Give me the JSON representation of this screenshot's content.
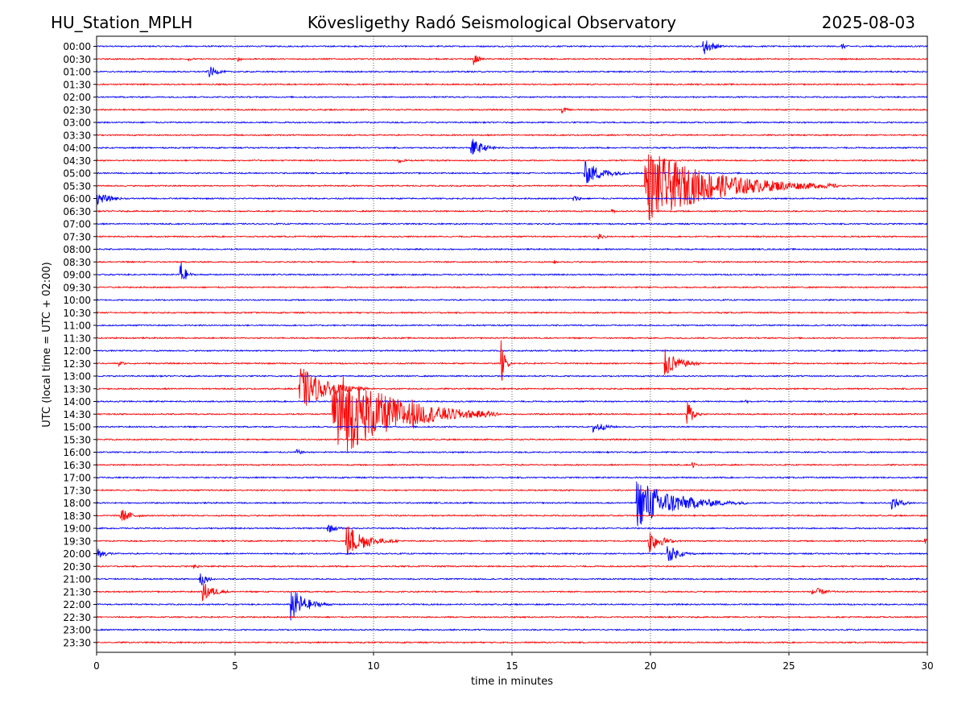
{
  "chart_data": {
    "type": "line",
    "title_left": "HU_Station_MPLH",
    "title": "Kövesligethy Radó Seismological Observatory",
    "title_right": "2025-08-03",
    "xlabel": "time in minutes",
    "ylabel": "UTC (local time = UTC + 02:00)",
    "xlim": [
      0,
      30
    ],
    "xticks": [
      0,
      5,
      10,
      15,
      20,
      25,
      30
    ],
    "grid": "vertical dotted lines at x ticks",
    "row_labels": [
      "00:00",
      "00:30",
      "01:00",
      "01:30",
      "02:00",
      "02:30",
      "03:00",
      "03:30",
      "04:00",
      "04:30",
      "05:00",
      "05:30",
      "06:00",
      "06:30",
      "07:00",
      "07:30",
      "08:00",
      "08:30",
      "09:00",
      "09:30",
      "10:00",
      "10:30",
      "11:00",
      "11:30",
      "12:00",
      "12:30",
      "13:00",
      "13:30",
      "14:00",
      "14:30",
      "15:00",
      "15:30",
      "16:00",
      "16:30",
      "17:00",
      "17:30",
      "18:00",
      "18:30",
      "19:00",
      "19:30",
      "20:00",
      "20:30",
      "21:00",
      "21:30",
      "22:00",
      "22:30",
      "23:00",
      "23:30"
    ],
    "colors": [
      "#0000ff",
      "#ff0000"
    ],
    "noise_level": 0.05,
    "events": [
      {
        "row": 0,
        "x": 21.9,
        "amp": 0.8,
        "dur": 1.0
      },
      {
        "row": 0,
        "x": 26.9,
        "amp": 0.3,
        "dur": 0.5
      },
      {
        "row": 1,
        "x": 3.3,
        "amp": 0.15,
        "dur": 0.8
      },
      {
        "row": 1,
        "x": 5.1,
        "amp": 0.2,
        "dur": 0.6
      },
      {
        "row": 1,
        "x": 13.6,
        "amp": 0.5,
        "dur": 0.6
      },
      {
        "row": 2,
        "x": 4.0,
        "amp": 0.6,
        "dur": 0.9
      },
      {
        "row": 5,
        "x": 16.8,
        "amp": 0.3,
        "dur": 0.6
      },
      {
        "row": 8,
        "x": 13.5,
        "amp": 0.9,
        "dur": 1.2
      },
      {
        "row": 9,
        "x": 10.9,
        "amp": 0.35,
        "dur": 0.5
      },
      {
        "row": 10,
        "x": 17.6,
        "amp": 1.0,
        "dur": 2.0
      },
      {
        "row": 11,
        "x": 19.8,
        "amp": 3.0,
        "dur": 7.0
      },
      {
        "row": 12,
        "x": 0.0,
        "amp": 0.5,
        "dur": 1.5
      },
      {
        "row": 12,
        "x": 17.2,
        "amp": 0.3,
        "dur": 0.8
      },
      {
        "row": 13,
        "x": 18.6,
        "amp": 0.2,
        "dur": 0.5
      },
      {
        "row": 15,
        "x": 18.1,
        "amp": 0.4,
        "dur": 0.6
      },
      {
        "row": 17,
        "x": 16.5,
        "amp": 0.2,
        "dur": 0.4
      },
      {
        "row": 18,
        "x": 3.0,
        "amp": 1.5,
        "dur": 0.5
      },
      {
        "row": 25,
        "x": 14.6,
        "amp": 2.0,
        "dur": 0.4
      },
      {
        "row": 25,
        "x": 20.5,
        "amp": 1.2,
        "dur": 1.5
      },
      {
        "row": 25,
        "x": 0.8,
        "amp": 0.3,
        "dur": 0.5
      },
      {
        "row": 27,
        "x": 7.3,
        "amp": 2.0,
        "dur": 2.5
      },
      {
        "row": 28,
        "x": 23.4,
        "amp": 0.25,
        "dur": 0.5
      },
      {
        "row": 29,
        "x": 8.5,
        "amp": 4.0,
        "dur": 6.0
      },
      {
        "row": 29,
        "x": 11.3,
        "amp": 1.5,
        "dur": 1.5
      },
      {
        "row": 29,
        "x": 21.3,
        "amp": 1.5,
        "dur": 0.6
      },
      {
        "row": 30,
        "x": 17.9,
        "amp": 0.6,
        "dur": 1.2
      },
      {
        "row": 32,
        "x": 7.2,
        "amp": 0.3,
        "dur": 0.6
      },
      {
        "row": 33,
        "x": 21.5,
        "amp": 0.3,
        "dur": 0.4
      },
      {
        "row": 36,
        "x": 19.5,
        "amp": 2.0,
        "dur": 4.0
      },
      {
        "row": 36,
        "x": 28.7,
        "amp": 0.5,
        "dur": 1.3
      },
      {
        "row": 37,
        "x": 0.8,
        "amp": 0.7,
        "dur": 1.2
      },
      {
        "row": 38,
        "x": 8.3,
        "amp": 0.5,
        "dur": 0.9
      },
      {
        "row": 39,
        "x": 9.0,
        "amp": 1.5,
        "dur": 2.0
      },
      {
        "row": 39,
        "x": 19.9,
        "amp": 1.2,
        "dur": 1.2
      },
      {
        "row": 39,
        "x": 29.9,
        "amp": 0.5,
        "dur": 0.2
      },
      {
        "row": 40,
        "x": 0.0,
        "amp": 0.5,
        "dur": 1.0
      },
      {
        "row": 40,
        "x": 20.6,
        "amp": 0.8,
        "dur": 1.2
      },
      {
        "row": 41,
        "x": 3.5,
        "amp": 0.3,
        "dur": 0.5
      },
      {
        "row": 42,
        "x": 3.7,
        "amp": 0.9,
        "dur": 0.6
      },
      {
        "row": 43,
        "x": 3.8,
        "amp": 0.9,
        "dur": 1.2
      },
      {
        "row": 43,
        "x": 25.8,
        "amp": 0.5,
        "dur": 1.3
      },
      {
        "row": 44,
        "x": 7.0,
        "amp": 1.5,
        "dur": 1.5
      }
    ]
  }
}
